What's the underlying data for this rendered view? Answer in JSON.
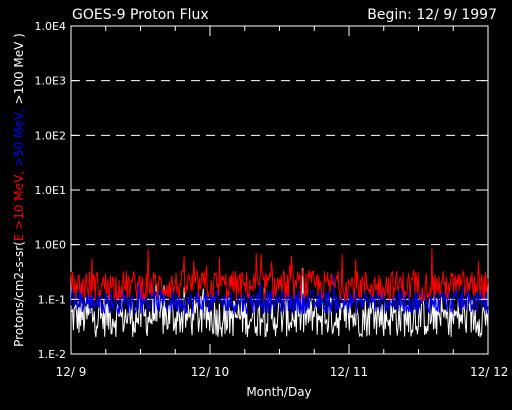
{
  "chart_data": {
    "type": "line",
    "title": "GOES-9 Proton Flux",
    "begin_label": "Begin: 12/ 9/ 1997",
    "xlabel": "Month/Day",
    "ylabel": {
      "prefix": "Protons/cm2-s-sr(",
      "parts": [
        {
          "text": "E >10 MeV, ",
          "color": "#ff0000"
        },
        {
          "text": ">50 MeV, ",
          "color": "#0000ff"
        },
        {
          "text": ">100 MeV )",
          "color": "#ffffff"
        }
      ]
    },
    "y_scale": "log",
    "ylim": [
      0.01,
      10000
    ],
    "xlim": [
      0,
      3
    ],
    "x_ticks": [
      {
        "value": 0,
        "label": "12/ 9"
      },
      {
        "value": 1,
        "label": "12/ 10"
      },
      {
        "value": 2,
        "label": "12/ 11"
      },
      {
        "value": 3,
        "label": "12/ 12"
      }
    ],
    "y_ticks": [
      {
        "value": 0.01,
        "label": "1.E-2"
      },
      {
        "value": 0.1,
        "label": "1.E-1"
      },
      {
        "value": 1,
        "label": "1.0E0"
      },
      {
        "value": 10,
        "label": "1.0E1"
      },
      {
        "value": 100,
        "label": "1.0E2"
      },
      {
        "value": 1000,
        "label": "1.0E3"
      },
      {
        "value": 10000,
        "label": "1.0E4"
      }
    ],
    "threshold_lines": [
      0.1,
      1,
      10,
      100,
      1000
    ],
    "series": [
      {
        "name": "E >10 MeV",
        "color": "#ff0000",
        "base": 0.18,
        "noise": 0.55,
        "spike": 0.9
      },
      {
        "name": ">50 MeV",
        "color": "#0000ff",
        "base": 0.09,
        "noise": 0.45,
        "spike": 0.55
      },
      {
        "name": ">100 MeV",
        "color": "#ffffff",
        "base": 0.048,
        "noise": 0.75,
        "spike": 1.0
      }
    ]
  }
}
